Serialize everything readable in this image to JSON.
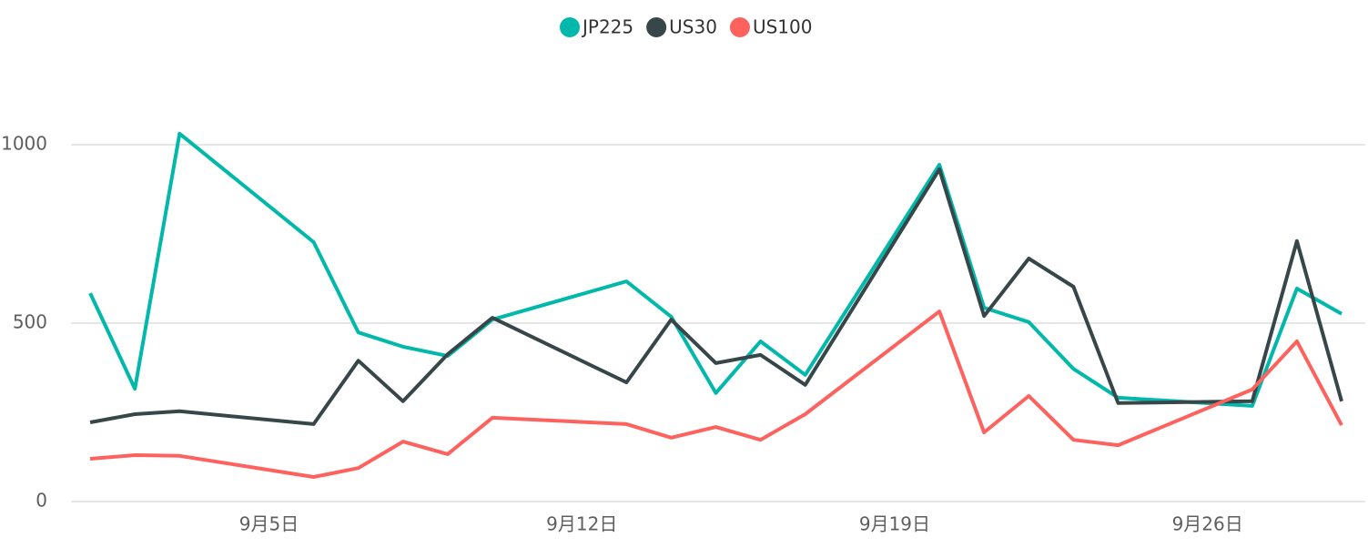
{
  "chart_data": {
    "type": "line",
    "x": [
      1,
      2,
      3,
      6,
      7,
      8,
      9,
      10,
      13,
      14,
      15,
      16,
      17,
      20,
      21,
      22,
      23,
      24,
      27,
      28,
      29
    ],
    "xlim": [
      0.57,
      29.53
    ],
    "xticks": [
      {
        "value": 5,
        "label": "9月5日"
      },
      {
        "value": 12,
        "label": "9月12日"
      },
      {
        "value": 19,
        "label": "9月19日"
      },
      {
        "value": 26,
        "label": "9月26日"
      }
    ],
    "ylim": [
      0,
      1150
    ],
    "yticks": [
      0,
      500,
      1000
    ],
    "grid": true,
    "legend": "top",
    "series": [
      {
        "name": "JP225",
        "color": "#01b8aa",
        "values": [
          584,
          316,
          1031,
          727,
          474,
          434,
          408,
          510,
          617,
          518,
          304,
          449,
          355,
          944,
          543,
          503,
          372,
          291,
          268,
          597,
          526
        ]
      },
      {
        "name": "US30",
        "color": "#374649",
        "values": [
          222,
          245,
          253,
          217,
          395,
          281,
          413,
          515,
          334,
          510,
          388,
          411,
          327,
          931,
          520,
          681,
          602,
          276,
          281,
          730,
          281
        ]
      },
      {
        "name": "US100",
        "color": "#fd625e",
        "values": [
          120,
          130,
          128,
          69,
          94,
          168,
          133,
          235,
          217,
          179,
          209,
          173,
          245,
          533,
          194,
          296,
          173,
          158,
          314,
          449,
          214
        ]
      }
    ]
  }
}
